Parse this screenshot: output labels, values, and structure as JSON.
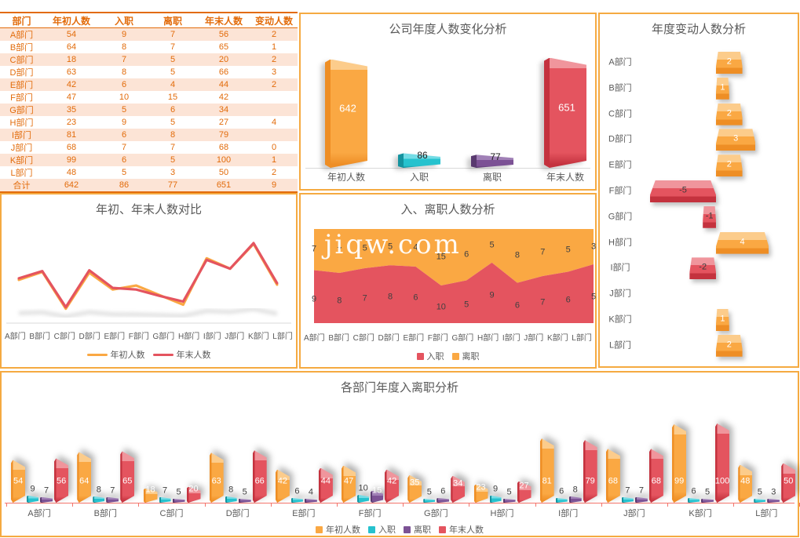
{
  "palette": {
    "orange": {
      "face": "#FAA843",
      "light": "#FCCC8B",
      "dark": "#EE8E25"
    },
    "teal": {
      "face": "#26C2CE",
      "light": "#74DCE5",
      "dark": "#14939F"
    },
    "purple": {
      "face": "#7C5295",
      "light": "#A080B6",
      "dark": "#59396F"
    },
    "red": {
      "face": "#E4545F",
      "light": "#F0959C",
      "dark": "#C4323E"
    },
    "ui": {
      "panel_border": "#F5AA41",
      "title_gray": "#595959",
      "axis_gray": "#D9D9D9",
      "axis_red": "#F4756C",
      "table_text": "#E26B0A",
      "table_alt_bg": "#FCE4D6",
      "label_dark": "#404040"
    }
  },
  "watermark": {
    "text": "jiqw.com"
  },
  "table": {
    "headers": [
      "部门",
      "年初人数",
      "入职",
      "离职",
      "年末人数",
      "变动人数"
    ],
    "rows": [
      [
        "A部门",
        54,
        9,
        7,
        56,
        2
      ],
      [
        "B部门",
        64,
        8,
        7,
        65,
        1
      ],
      [
        "C部门",
        18,
        7,
        5,
        20,
        2
      ],
      [
        "D部门",
        63,
        8,
        5,
        66,
        3
      ],
      [
        "E部门",
        42,
        6,
        4,
        44,
        2
      ],
      [
        "F部门",
        47,
        10,
        15,
        42,
        ""
      ],
      [
        "G部门",
        35,
        5,
        6,
        34,
        ""
      ],
      [
        "H部门",
        23,
        9,
        5,
        27,
        4
      ],
      [
        "I部门",
        81,
        6,
        8,
        79,
        ""
      ],
      [
        "J部门",
        68,
        7,
        7,
        68,
        0
      ],
      [
        "K部门",
        99,
        6,
        5,
        100,
        1
      ],
      [
        "L部门",
        48,
        5,
        3,
        50,
        2
      ],
      [
        "合计",
        642,
        86,
        77,
        651,
        9
      ]
    ]
  },
  "chart_data": [
    {
      "type": "bar",
      "variant": "3d-column",
      "title": "公司年度人数变化分析",
      "categories": [
        "年初人数",
        "入职",
        "离职",
        "年末人数"
      ],
      "values": [
        642,
        86,
        77,
        651
      ],
      "bar_colors": [
        "orange",
        "teal",
        "purple",
        "red"
      ],
      "ylim": [
        0,
        700
      ],
      "grid": false,
      "data_labels": true
    },
    {
      "type": "bar",
      "variant": "3d-horizontal",
      "title": "年度变动人数分析",
      "categories": [
        "A部门",
        "B部门",
        "C部门",
        "D部门",
        "E部门",
        "F部门",
        "G部门",
        "H部门",
        "I部门",
        "J部门",
        "K部门",
        "L部门"
      ],
      "values": [
        2,
        1,
        2,
        3,
        2,
        -5,
        -1,
        4,
        -2,
        0,
        1,
        2
      ],
      "positive_color": "orange",
      "negative_color": "red",
      "xlim": [
        -6,
        6
      ],
      "data_labels": true
    },
    {
      "type": "line",
      "title": "年初、年末人数对比",
      "categories": [
        "A部门",
        "B部门",
        "C部门",
        "D部门",
        "E部门",
        "F部门",
        "G部门",
        "H部门",
        "I部门",
        "J部门",
        "K部门",
        "L部门"
      ],
      "series": [
        {
          "name": "年初人数",
          "color": "orange",
          "values": [
            54,
            64,
            18,
            63,
            42,
            47,
            35,
            23,
            81,
            68,
            99,
            48
          ]
        },
        {
          "name": "年末人数",
          "color": "red",
          "values": [
            56,
            65,
            20,
            66,
            44,
            42,
            34,
            27,
            79,
            68,
            100,
            50
          ]
        }
      ],
      "ylim": [
        0,
        110
      ],
      "legend_position": "bottom",
      "grid": false
    },
    {
      "type": "area",
      "variant": "stacked-100",
      "title": "入、离职人数分析",
      "categories": [
        "A部门",
        "B部门",
        "C部门",
        "D部门",
        "E部门",
        "F部门",
        "G部门",
        "H部门",
        "I部门",
        "J部门",
        "K部门",
        "L部门"
      ],
      "series": [
        {
          "name": "入职",
          "color": "red",
          "values": [
            9,
            8,
            7,
            8,
            6,
            10,
            5,
            9,
            6,
            7,
            6,
            5
          ]
        },
        {
          "name": "离职",
          "color": "orange",
          "values": [
            7,
            7,
            5,
            5,
            4,
            15,
            6,
            5,
            8,
            7,
            5,
            3
          ]
        }
      ],
      "legend_position": "bottom",
      "data_labels": true
    },
    {
      "type": "bar",
      "variant": "3d-grouped",
      "title": "各部门年度入离职分析",
      "categories": [
        "A部门",
        "B部门",
        "C部门",
        "D部门",
        "E部门",
        "F部门",
        "G部门",
        "H部门",
        "I部门",
        "J部门",
        "K部门",
        "L部门"
      ],
      "series": [
        {
          "name": "年初人数",
          "color": "orange",
          "values": [
            54,
            64,
            18,
            63,
            42,
            47,
            35,
            23,
            81,
            68,
            99,
            48
          ]
        },
        {
          "name": "入职",
          "color": "teal",
          "values": [
            9,
            8,
            7,
            8,
            6,
            10,
            5,
            9,
            6,
            7,
            6,
            5
          ]
        },
        {
          "name": "离职",
          "color": "purple",
          "values": [
            7,
            7,
            5,
            5,
            4,
            15,
            6,
            5,
            8,
            7,
            5,
            3
          ]
        },
        {
          "name": "年末人数",
          "color": "red",
          "values": [
            56,
            65,
            20,
            66,
            44,
            42,
            34,
            27,
            79,
            68,
            100,
            50
          ]
        }
      ],
      "ylim": [
        0,
        110
      ],
      "legend_position": "bottom",
      "data_labels": true
    }
  ]
}
